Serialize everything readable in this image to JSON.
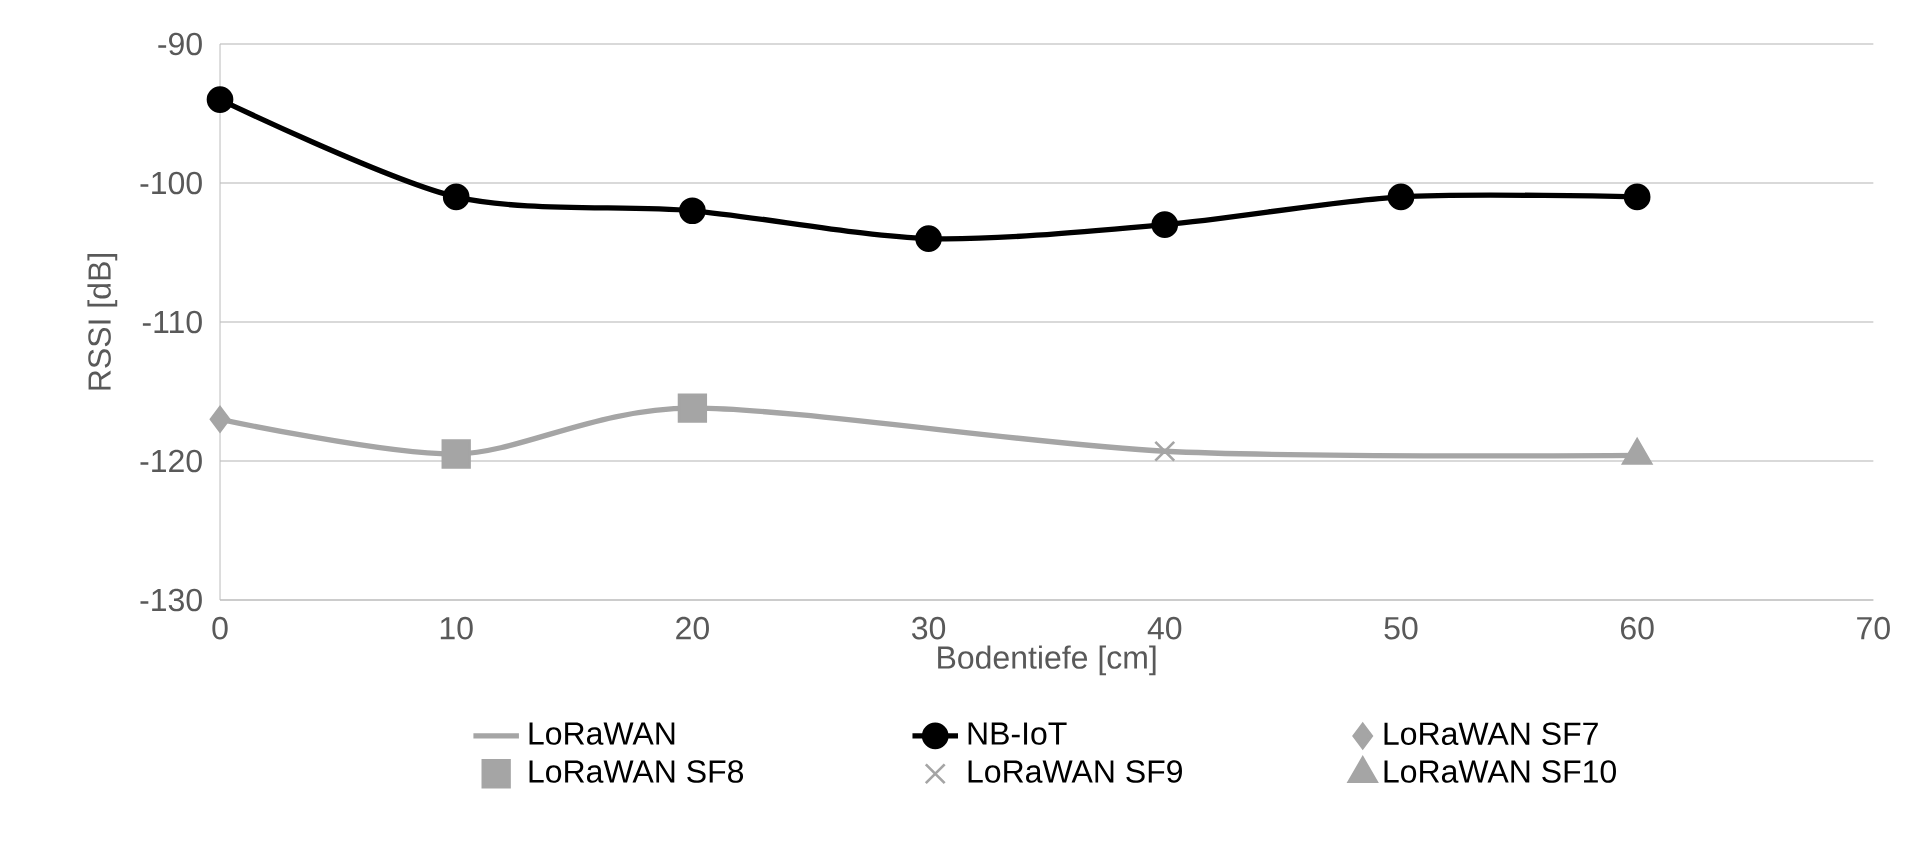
{
  "chart_data": {
    "type": "line",
    "xlabel": "Bodentiefe [cm]",
    "ylabel": "RSSI [dB]",
    "xlim": [
      0,
      70
    ],
    "xticks": [
      0,
      10,
      20,
      30,
      40,
      50,
      60,
      70
    ],
    "ylim": [
      -130,
      -90
    ],
    "yticks": [
      -130,
      -120,
      -110,
      -100,
      -90
    ],
    "grid": "y",
    "legend": "bottom",
    "series": [
      {
        "name": "LoRaWAN",
        "color": "#a5a5a5",
        "marker": "none",
        "x": [
          0,
          10,
          20,
          40,
          60
        ],
        "values": [
          -117,
          -119.5,
          -116.2,
          -119.3,
          -119.6
        ]
      },
      {
        "name": "NB-IoT",
        "color": "#000000",
        "marker": "circle",
        "x": [
          0,
          10,
          20,
          30,
          40,
          50,
          60
        ],
        "values": [
          -94,
          -101,
          -102,
          -104,
          -103,
          -101,
          -101
        ]
      },
      {
        "name": "LoRaWAN SF7",
        "type": "scatter",
        "color": "#a5a5a5",
        "marker": "diamond",
        "x": [
          0
        ],
        "values": [
          -117
        ]
      },
      {
        "name": "LoRaWAN SF8",
        "type": "scatter",
        "color": "#a5a5a5",
        "marker": "square",
        "x": [
          10,
          20
        ],
        "values": [
          -119.5,
          -116.2
        ]
      },
      {
        "name": "LoRaWAN SF9",
        "type": "scatter",
        "color": "#a5a5a5",
        "marker": "cross",
        "x": [
          40
        ],
        "values": [
          -119.3
        ]
      },
      {
        "name": "LoRaWAN SF10",
        "type": "scatter",
        "color": "#a5a5a5",
        "marker": "triangle",
        "x": [
          60
        ],
        "values": [
          -119.6
        ]
      }
    ]
  }
}
